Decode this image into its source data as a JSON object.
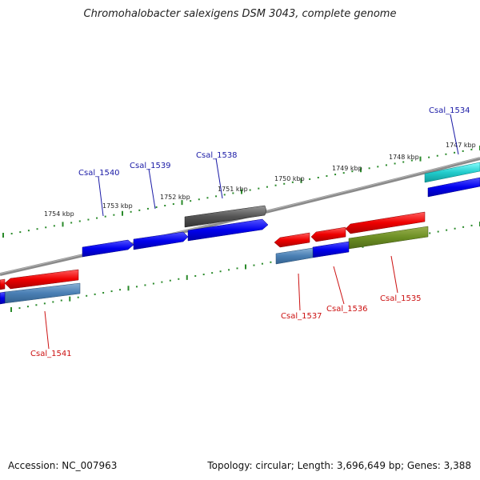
{
  "title": "Chromohalobacter salexigens DSM 3043, complete genome",
  "footer": {
    "accession": "Accession: NC_007963",
    "summary": "Topology: circular; Length: 3,696,649 bp; Genes: 3,388"
  },
  "colors": {
    "backbone": "#8a8a8a",
    "tick": "#2a8a2a",
    "forward_label": "#1a1aa6",
    "reverse_label": "#cc1111"
  },
  "kbp_labels": [
    "1747 kbp",
    "1748 kbp",
    "1749 kbp",
    "1750 kbp",
    "1751 kbp",
    "1752 kbp",
    "1753 kbp",
    "1754 kbp"
  ],
  "gene_labels_top": [
    "Csal_1534",
    "Csal_1538",
    "Csal_1539",
    "Csal_1540"
  ],
  "gene_labels_bottom": [
    "Csal_1535",
    "Csal_1536",
    "Csal_1537",
    "Csal_1541"
  ]
}
